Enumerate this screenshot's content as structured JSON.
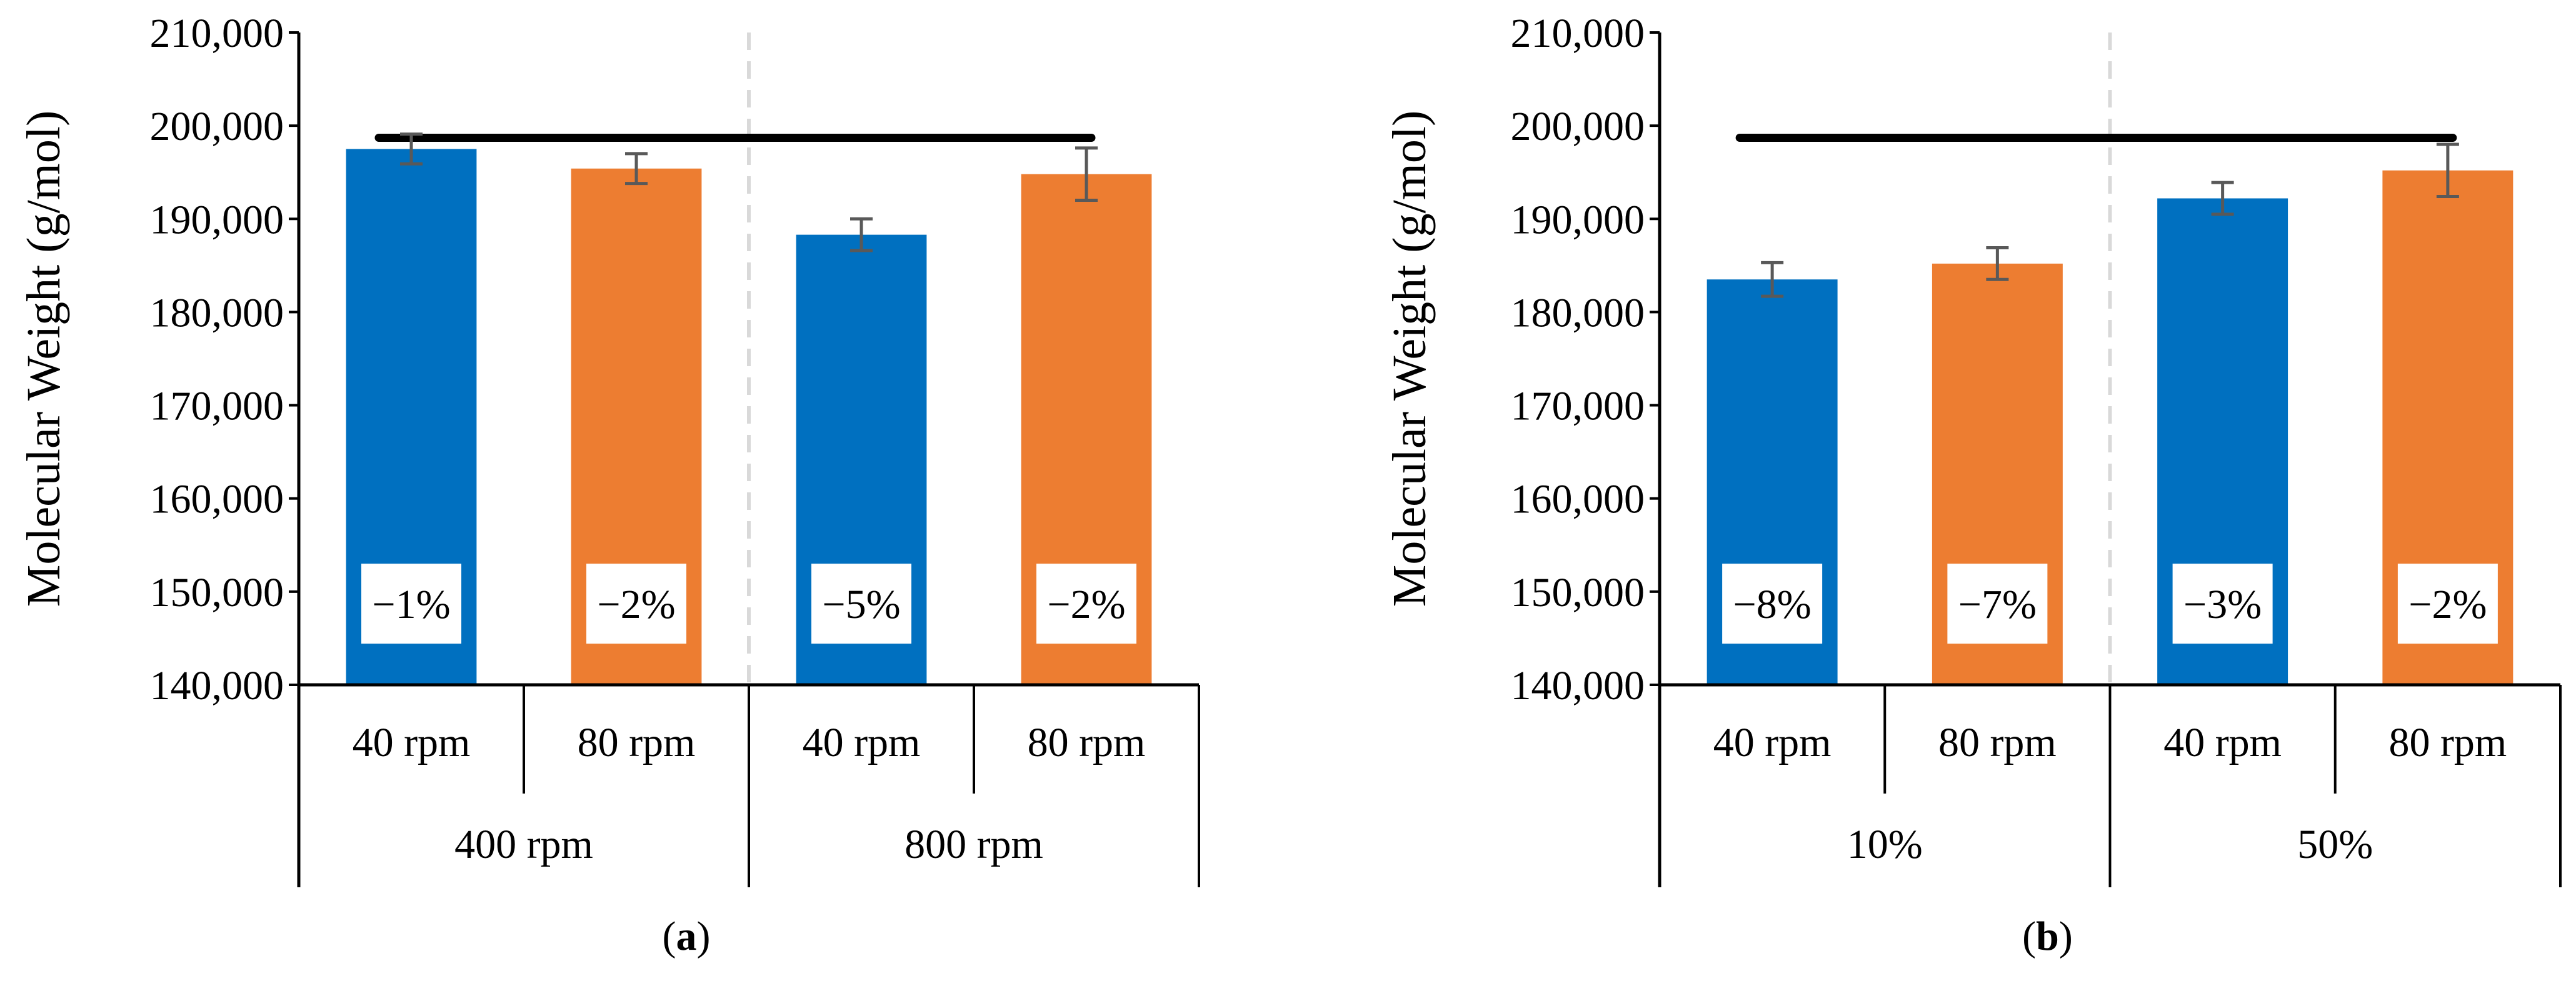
{
  "figure": {
    "panels": [
      "a",
      "b"
    ]
  },
  "colors": {
    "series_40": "#0070C0",
    "series_80": "#ED7D31",
    "reference_line": "#000000",
    "error_bar": "#595959",
    "group_divider": "#D9D9D9",
    "label_box": "#FFFFFF"
  },
  "chart_data": [
    {
      "type": "bar",
      "panel_label": "a",
      "ylabel": "Molecular Weight (g/mol)",
      "ylim": [
        140000,
        210000
      ],
      "yticks": [
        140000,
        150000,
        160000,
        170000,
        180000,
        190000,
        200000,
        210000
      ],
      "ytick_labels": [
        "140,000",
        "150,000",
        "160,000",
        "170,000",
        "180,000",
        "190,000",
        "200,000",
        "210,000"
      ],
      "reference_value": 198700,
      "groups": [
        "400 rpm",
        "800 rpm"
      ],
      "categories": [
        "40 rpm",
        "80 rpm",
        "40 rpm",
        "80 rpm"
      ],
      "values": [
        197500,
        195400,
        188300,
        194800
      ],
      "errors": [
        1600,
        1600,
        1700,
        2800
      ],
      "bar_series": [
        0,
        1,
        0,
        1
      ],
      "percent_labels": [
        "−1%",
        "−2%",
        "−5%",
        "−2%"
      ],
      "grid": false
    },
    {
      "type": "bar",
      "panel_label": "b",
      "ylabel": "Molecular Weight (g/mol)",
      "ylim": [
        140000,
        210000
      ],
      "yticks": [
        140000,
        150000,
        160000,
        170000,
        180000,
        190000,
        200000,
        210000
      ],
      "ytick_labels": [
        "140,000",
        "150,000",
        "160,000",
        "170,000",
        "180,000",
        "190,000",
        "200,000",
        "210,000"
      ],
      "reference_value": 198700,
      "groups": [
        "10%",
        "50%"
      ],
      "categories": [
        "40 rpm",
        "80 rpm",
        "40 rpm",
        "80 rpm"
      ],
      "values": [
        183500,
        185200,
        192200,
        195200
      ],
      "errors": [
        1800,
        1700,
        1700,
        2800
      ],
      "bar_series": [
        0,
        1,
        0,
        1
      ],
      "percent_labels": [
        "−8%",
        "−7%",
        "−3%",
        "−2%"
      ],
      "grid": false
    }
  ]
}
